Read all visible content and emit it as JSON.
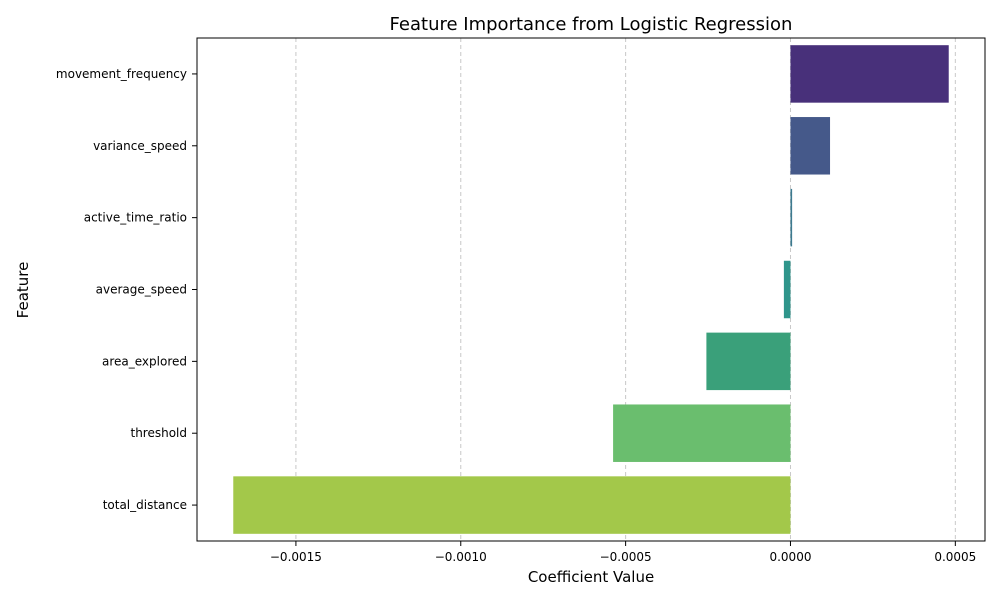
{
  "chart_data": {
    "type": "bar",
    "orientation": "horizontal",
    "title": "Feature Importance from Logistic Regression",
    "xlabel": "Coefficient Value",
    "ylabel": "Feature",
    "xlim": [
      -0.0018,
      0.00059
    ],
    "x_ticks": [
      {
        "value": -0.0015,
        "label": "−0.0015"
      },
      {
        "value": -0.001,
        "label": "−0.0010"
      },
      {
        "value": -0.0005,
        "label": "−0.0005"
      },
      {
        "value": 0.0,
        "label": "0.0000"
      },
      {
        "value": 0.0005,
        "label": "0.0005"
      }
    ],
    "grid": {
      "x": true,
      "y": false,
      "style": "dashed"
    },
    "categories": [
      "movement_frequency",
      "variance_speed",
      "active_time_ratio",
      "average_speed",
      "area_explored",
      "threshold",
      "total_distance"
    ],
    "values": [
      0.00048,
      0.00012,
      5e-06,
      -2e-05,
      -0.000255,
      -0.000538,
      -0.00169
    ],
    "colors": [
      "#48307a",
      "#45598a",
      "#3d7a8f",
      "#2f958b",
      "#3aa07a",
      "#6abe6e",
      "#a3c84a"
    ]
  }
}
